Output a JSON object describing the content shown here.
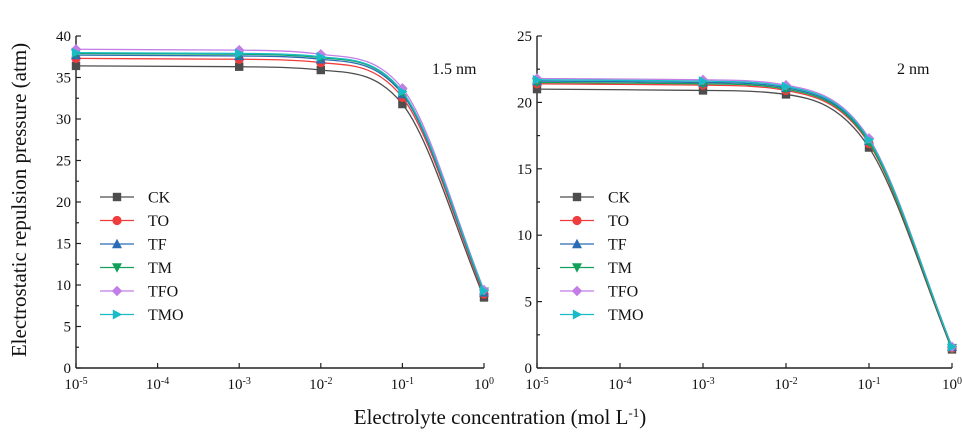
{
  "figure": {
    "ylabel": "Electrostatic repulsion pressure (atm)",
    "xlabel_main": "Electrolyte concentration (mol L",
    "xlabel_sup": "-1",
    "xlabel_end": ")"
  },
  "chart_data": [
    {
      "type": "line",
      "panel_label": "1.5 nm",
      "xscale": "log",
      "x": [
        1e-05,
        0.001,
        0.01,
        0.1,
        1
      ],
      "xlim": [
        1e-05,
        1
      ],
      "ylim": [
        0,
        40
      ],
      "yticks": [
        0,
        5,
        10,
        15,
        20,
        25,
        30,
        35,
        40
      ],
      "xticks": [
        {
          "value": 1e-05,
          "base": "10",
          "exp": "-5"
        },
        {
          "value": 0.0001,
          "base": "10",
          "exp": "-4"
        },
        {
          "value": 0.001,
          "base": "10",
          "exp": "-3"
        },
        {
          "value": 0.01,
          "base": "10",
          "exp": "-2"
        },
        {
          "value": 0.1,
          "base": "10",
          "exp": "-1"
        },
        {
          "value": 1,
          "base": "10",
          "exp": "0"
        }
      ],
      "legend_position": "left-middle",
      "series": [
        {
          "name": "CK",
          "color": "#4d4d4d",
          "marker": "square",
          "values": [
            36.4,
            36.3,
            35.9,
            31.8,
            8.5
          ]
        },
        {
          "name": "TO",
          "color": "#f03c3c",
          "marker": "circle",
          "values": [
            37.3,
            37.2,
            36.8,
            32.6,
            8.9
          ]
        },
        {
          "name": "TF",
          "color": "#2a6db5",
          "marker": "triangle-up",
          "values": [
            37.7,
            37.6,
            37.2,
            33.0,
            9.1
          ]
        },
        {
          "name": "TM",
          "color": "#13a05a",
          "marker": "triangle-down",
          "values": [
            37.9,
            37.8,
            37.4,
            33.2,
            9.2
          ]
        },
        {
          "name": "TFO",
          "color": "#c27ee6",
          "marker": "diamond",
          "values": [
            38.4,
            38.3,
            37.8,
            33.7,
            9.4
          ]
        },
        {
          "name": "TMO",
          "color": "#19bcc6",
          "marker": "triangle-right",
          "values": [
            38.0,
            37.9,
            37.5,
            33.3,
            9.3
          ]
        }
      ]
    },
    {
      "type": "line",
      "panel_label": "2 nm",
      "xscale": "log",
      "x": [
        1e-05,
        0.001,
        0.01,
        0.1,
        1
      ],
      "xlim": [
        1e-05,
        1
      ],
      "ylim": [
        0,
        25
      ],
      "yticks": [
        0,
        5,
        10,
        15,
        20,
        25
      ],
      "xticks": [
        {
          "value": 1e-05,
          "base": "10",
          "exp": "-5"
        },
        {
          "value": 0.0001,
          "base": "10",
          "exp": "-4"
        },
        {
          "value": 0.001,
          "base": "10",
          "exp": "-3"
        },
        {
          "value": 0.01,
          "base": "10",
          "exp": "-2"
        },
        {
          "value": 0.1,
          "base": "10",
          "exp": "-1"
        },
        {
          "value": 1,
          "base": "10",
          "exp": "0"
        }
      ],
      "legend_position": "left-middle",
      "series": [
        {
          "name": "CK",
          "color": "#4d4d4d",
          "marker": "square",
          "values": [
            21.0,
            20.9,
            20.6,
            16.6,
            1.4
          ]
        },
        {
          "name": "TO",
          "color": "#f03c3c",
          "marker": "circle",
          "values": [
            21.4,
            21.3,
            20.9,
            16.9,
            1.5
          ]
        },
        {
          "name": "TF",
          "color": "#2a6db5",
          "marker": "triangle-up",
          "values": [
            21.6,
            21.5,
            21.1,
            17.1,
            1.6
          ]
        },
        {
          "name": "TM",
          "color": "#13a05a",
          "marker": "triangle-down",
          "values": [
            21.5,
            21.4,
            21.0,
            17.0,
            1.5
          ]
        },
        {
          "name": "TFO",
          "color": "#c27ee6",
          "marker": "diamond",
          "values": [
            21.8,
            21.7,
            21.3,
            17.3,
            1.6
          ]
        },
        {
          "name": "TMO",
          "color": "#19bcc6",
          "marker": "triangle-right",
          "values": [
            21.7,
            21.6,
            21.2,
            17.2,
            1.6
          ]
        }
      ]
    }
  ]
}
